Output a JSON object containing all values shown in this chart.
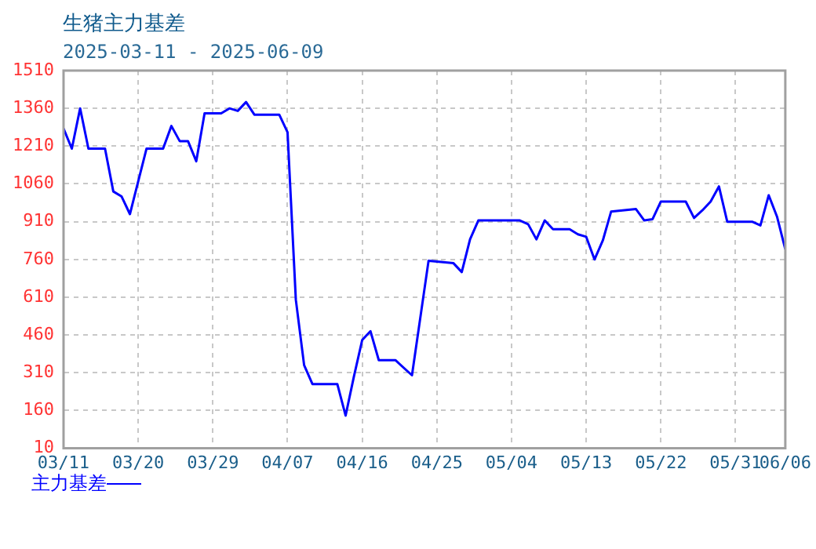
{
  "chart_data": {
    "type": "line",
    "title": "生猪主力基差",
    "subtitle": "2025-03-11 - 2025-06-09",
    "x": [
      "2025-03-11",
      "2025-03-12",
      "2025-03-13",
      "2025-03-14",
      "2025-03-16",
      "2025-03-17",
      "2025-03-18",
      "2025-03-19",
      "2025-03-21",
      "2025-03-23",
      "2025-03-24",
      "2025-03-25",
      "2025-03-26",
      "2025-03-27",
      "2025-03-28",
      "2025-03-30",
      "2025-03-31",
      "2025-04-01",
      "2025-04-02",
      "2025-04-03",
      "2025-04-06",
      "2025-04-07",
      "2025-04-08",
      "2025-04-09",
      "2025-04-10",
      "2025-04-13",
      "2025-04-14",
      "2025-04-15",
      "2025-04-16",
      "2025-04-17",
      "2025-04-18",
      "2025-04-20",
      "2025-04-22",
      "2025-04-24",
      "2025-04-27",
      "2025-04-28",
      "2025-04-29",
      "2025-04-30",
      "2025-05-05",
      "2025-05-06",
      "2025-05-07",
      "2025-05-08",
      "2025-05-09",
      "2025-05-11",
      "2025-05-12",
      "2025-05-13",
      "2025-05-14",
      "2025-05-15",
      "2025-05-16",
      "2025-05-19",
      "2025-05-20",
      "2025-05-21",
      "2025-05-22",
      "2025-05-25",
      "2025-05-26",
      "2025-05-27",
      "2025-05-28",
      "2025-05-29",
      "2025-05-30",
      "2025-06-02",
      "2025-06-03",
      "2025-06-04",
      "2025-06-05",
      "2025-06-06"
    ],
    "series": [
      {
        "name": "主力基差",
        "color": "#0000ff",
        "values": [
          1280,
          1200,
          1360,
          1200,
          1200,
          1030,
          1010,
          940,
          1200,
          1200,
          1290,
          1230,
          1230,
          1150,
          1340,
          1340,
          1360,
          1350,
          1385,
          1335,
          1335,
          1265,
          600,
          340,
          265,
          265,
          140,
          295,
          440,
          475,
          360,
          360,
          300,
          755,
          745,
          710,
          840,
          915,
          915,
          900,
          840,
          915,
          880,
          880,
          860,
          850,
          760,
          835,
          950,
          960,
          915,
          920,
          990,
          990,
          925,
          955,
          990,
          1050,
          910,
          910,
          895,
          1015,
          930,
          800
        ]
      }
    ],
    "xlim": [
      "2025-03-11",
      "2025-06-06"
    ],
    "xticks": [
      {
        "value": "2025-03-11",
        "label": "03/11"
      },
      {
        "value": "2025-03-20",
        "label": "03/20"
      },
      {
        "value": "2025-03-29",
        "label": "03/29"
      },
      {
        "value": "2025-04-07",
        "label": "04/07"
      },
      {
        "value": "2025-04-16",
        "label": "04/16"
      },
      {
        "value": "2025-04-25",
        "label": "04/25"
      },
      {
        "value": "2025-05-04",
        "label": "05/04"
      },
      {
        "value": "2025-05-13",
        "label": "05/13"
      },
      {
        "value": "2025-05-22",
        "label": "05/22"
      },
      {
        "value": "2025-05-31",
        "label": "05/31"
      },
      {
        "value": "2025-06-06",
        "label": "06/06"
      }
    ],
    "ylim": [
      10,
      1510
    ],
    "yticks": [
      10,
      160,
      310,
      460,
      610,
      760,
      910,
      1060,
      1210,
      1360,
      1510
    ],
    "grid": true,
    "legend": "bottom left"
  }
}
